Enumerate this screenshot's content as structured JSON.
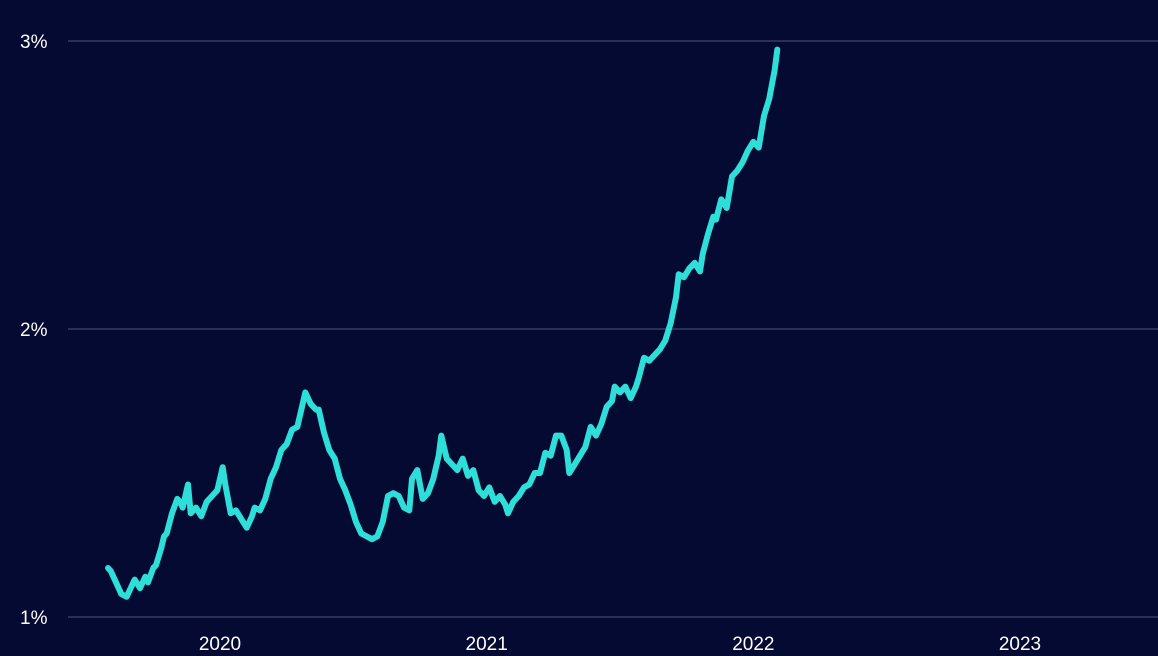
{
  "chart_data": {
    "type": "line",
    "title": "",
    "xlabel": "",
    "ylabel": "",
    "x_ticks": [
      {
        "value": 2020,
        "label": "2020"
      },
      {
        "value": 2021,
        "label": "2021"
      },
      {
        "value": 2022,
        "label": "2022"
      },
      {
        "value": 2023,
        "label": "2023"
      }
    ],
    "y_ticks": [
      {
        "value": 1,
        "label": "1%"
      },
      {
        "value": 2,
        "label": "2%"
      },
      {
        "value": 3,
        "label": "3%"
      }
    ],
    "xlim": [
      2019.55,
      2023.48
    ],
    "ylim": [
      1,
      3
    ],
    "grid": true,
    "legend": "none",
    "colors": {
      "background": "#050a33",
      "line": "#2ddfd8",
      "grid": "#505878",
      "text": "#ffffff"
    },
    "series": [
      {
        "points": [
          [
            2019.58,
            1.17
          ],
          [
            2019.59,
            1.16
          ],
          [
            2019.61,
            1.12
          ],
          [
            2019.63,
            1.08
          ],
          [
            2019.65,
            1.07
          ],
          [
            2019.67,
            1.11
          ],
          [
            2019.68,
            1.13
          ],
          [
            2019.7,
            1.1
          ],
          [
            2019.72,
            1.14
          ],
          [
            2019.73,
            1.12
          ],
          [
            2019.75,
            1.17
          ],
          [
            2019.76,
            1.18
          ],
          [
            2019.78,
            1.24
          ],
          [
            2019.79,
            1.28
          ],
          [
            2019.8,
            1.29
          ],
          [
            2019.82,
            1.36
          ],
          [
            2019.84,
            1.41
          ],
          [
            2019.85,
            1.4
          ],
          [
            2019.86,
            1.38
          ],
          [
            2019.88,
            1.46
          ],
          [
            2019.89,
            1.36
          ],
          [
            2019.91,
            1.38
          ],
          [
            2019.93,
            1.35
          ],
          [
            2019.95,
            1.4
          ],
          [
            2019.97,
            1.42
          ],
          [
            2019.99,
            1.44
          ],
          [
            2020.01,
            1.52
          ],
          [
            2020.02,
            1.46
          ],
          [
            2020.04,
            1.36
          ],
          [
            2020.06,
            1.37
          ],
          [
            2020.08,
            1.34
          ],
          [
            2020.1,
            1.31
          ],
          [
            2020.12,
            1.35
          ],
          [
            2020.13,
            1.38
          ],
          [
            2020.15,
            1.37
          ],
          [
            2020.17,
            1.41
          ],
          [
            2020.19,
            1.48
          ],
          [
            2020.21,
            1.52
          ],
          [
            2020.23,
            1.58
          ],
          [
            2020.25,
            1.6
          ],
          [
            2020.27,
            1.65
          ],
          [
            2020.29,
            1.66
          ],
          [
            2020.3,
            1.7
          ],
          [
            2020.32,
            1.78
          ],
          [
            2020.34,
            1.74
          ],
          [
            2020.36,
            1.72
          ],
          [
            2020.37,
            1.72
          ],
          [
            2020.39,
            1.64
          ],
          [
            2020.41,
            1.58
          ],
          [
            2020.43,
            1.55
          ],
          [
            2020.45,
            1.48
          ],
          [
            2020.47,
            1.44
          ],
          [
            2020.49,
            1.39
          ],
          [
            2020.51,
            1.33
          ],
          [
            2020.53,
            1.29
          ],
          [
            2020.55,
            1.28
          ],
          [
            2020.57,
            1.27
          ],
          [
            2020.59,
            1.28
          ],
          [
            2020.61,
            1.33
          ],
          [
            2020.63,
            1.42
          ],
          [
            2020.65,
            1.43
          ],
          [
            2020.67,
            1.42
          ],
          [
            2020.69,
            1.38
          ],
          [
            2020.71,
            1.37
          ],
          [
            2020.72,
            1.48
          ],
          [
            2020.74,
            1.51
          ],
          [
            2020.76,
            1.41
          ],
          [
            2020.78,
            1.43
          ],
          [
            2020.8,
            1.48
          ],
          [
            2020.82,
            1.56
          ],
          [
            2020.83,
            1.63
          ],
          [
            2020.85,
            1.55
          ],
          [
            2020.87,
            1.53
          ],
          [
            2020.89,
            1.51
          ],
          [
            2020.91,
            1.55
          ],
          [
            2020.93,
            1.49
          ],
          [
            2020.95,
            1.51
          ],
          [
            2020.97,
            1.44
          ],
          [
            2020.99,
            1.42
          ],
          [
            2021.01,
            1.45
          ],
          [
            2021.03,
            1.4
          ],
          [
            2021.05,
            1.42
          ],
          [
            2021.07,
            1.39
          ],
          [
            2021.08,
            1.36
          ],
          [
            2021.1,
            1.4
          ],
          [
            2021.12,
            1.42
          ],
          [
            2021.14,
            1.45
          ],
          [
            2021.16,
            1.46
          ],
          [
            2021.18,
            1.5
          ],
          [
            2021.2,
            1.5
          ],
          [
            2021.22,
            1.57
          ],
          [
            2021.24,
            1.56
          ],
          [
            2021.26,
            1.63
          ],
          [
            2021.28,
            1.63
          ],
          [
            2021.3,
            1.58
          ],
          [
            2021.31,
            1.5
          ],
          [
            2021.33,
            1.53
          ],
          [
            2021.35,
            1.56
          ],
          [
            2021.37,
            1.59
          ],
          [
            2021.39,
            1.66
          ],
          [
            2021.41,
            1.63
          ],
          [
            2021.43,
            1.67
          ],
          [
            2021.45,
            1.73
          ],
          [
            2021.47,
            1.75
          ],
          [
            2021.48,
            1.8
          ],
          [
            2021.5,
            1.78
          ],
          [
            2021.52,
            1.8
          ],
          [
            2021.54,
            1.76
          ],
          [
            2021.56,
            1.8
          ],
          [
            2021.57,
            1.83
          ],
          [
            2021.59,
            1.9
          ],
          [
            2021.61,
            1.89
          ],
          [
            2021.63,
            1.91
          ],
          [
            2021.65,
            1.93
          ],
          [
            2021.67,
            1.96
          ],
          [
            2021.69,
            2.02
          ],
          [
            2021.71,
            2.11
          ],
          [
            2021.72,
            2.19
          ],
          [
            2021.74,
            2.18
          ],
          [
            2021.76,
            2.21
          ],
          [
            2021.78,
            2.23
          ],
          [
            2021.8,
            2.2
          ],
          [
            2021.81,
            2.26
          ],
          [
            2021.83,
            2.33
          ],
          [
            2021.85,
            2.39
          ],
          [
            2021.86,
            2.38
          ],
          [
            2021.88,
            2.45
          ],
          [
            2021.9,
            2.42
          ],
          [
            2021.92,
            2.53
          ],
          [
            2021.94,
            2.55
          ],
          [
            2021.96,
            2.58
          ],
          [
            2021.98,
            2.62
          ],
          [
            2022.0,
            2.65
          ],
          [
            2022.02,
            2.63
          ],
          [
            2022.04,
            2.74
          ],
          [
            2022.06,
            2.8
          ],
          [
            2022.08,
            2.9
          ],
          [
            2022.09,
            2.97
          ]
        ]
      }
    ]
  }
}
